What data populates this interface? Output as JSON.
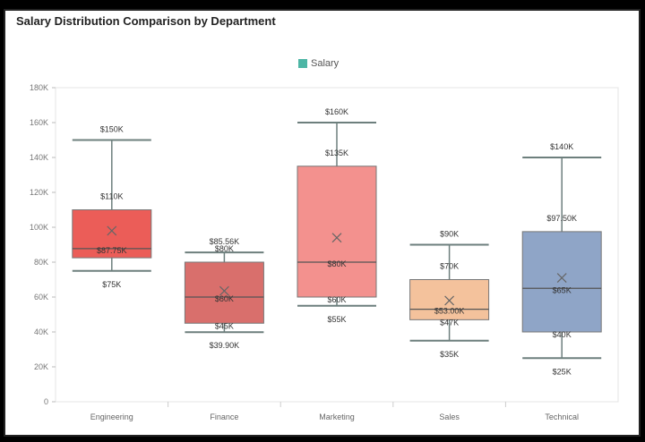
{
  "chart_data": {
    "type": "boxplot",
    "title": "Salary Distribution Comparison by Department",
    "legend": {
      "label": "Salary",
      "color": "#4db6a5",
      "placement": "top-center"
    },
    "xlabel": "",
    "ylabel": "",
    "ylim": [
      0,
      180000
    ],
    "y_ticks": [
      {
        "value": 0,
        "label": "0"
      },
      {
        "value": 20000,
        "label": "20K"
      },
      {
        "value": 40000,
        "label": "40K"
      },
      {
        "value": 60000,
        "label": "60K"
      },
      {
        "value": 80000,
        "label": "80K"
      },
      {
        "value": 100000,
        "label": "100K"
      },
      {
        "value": 120000,
        "label": "120K"
      },
      {
        "value": 140000,
        "label": "140K"
      },
      {
        "value": 160000,
        "label": "160K"
      },
      {
        "value": 180000,
        "label": "180K"
      }
    ],
    "categories": [
      "Engineering",
      "Finance",
      "Marketing",
      "Sales",
      "Technical"
    ],
    "series": [
      {
        "category": "Engineering",
        "min": 75000,
        "q1": 82500,
        "median": 87750,
        "q3": 110000,
        "max": 150000,
        "mean": 98000,
        "color": "#eb5d58",
        "labels": {
          "max": "$150K",
          "q3": "$110K",
          "median": "$87.75K",
          "min": "$75K"
        }
      },
      {
        "category": "Finance",
        "min": 39900,
        "q1": 45000,
        "median": 60000,
        "q3": 80000,
        "max": 85560,
        "mean": 63500,
        "color": "#d96f6c",
        "labels": {
          "max": "$85.56K",
          "q3": "$80K",
          "median": "$60K",
          "q1": "$45K",
          "min": "$39.90K"
        }
      },
      {
        "category": "Marketing",
        "min": 55000,
        "q1": 60000,
        "median": 80000,
        "q3": 135000,
        "max": 160000,
        "mean": 94000,
        "color": "#f3918e",
        "labels": {
          "max": "$160K",
          "q3": "$135K",
          "median": "$80K",
          "q1": "$60K",
          "min": "$55K"
        }
      },
      {
        "category": "Sales",
        "min": 35000,
        "q1": 47000,
        "median": 53000,
        "q3": 70000,
        "max": 90000,
        "mean": 58000,
        "color": "#f4c29c",
        "labels": {
          "max": "$90K",
          "q3": "$70K",
          "median": "$53.00K",
          "q1": "$47K",
          "min": "$35K"
        }
      },
      {
        "category": "Technical",
        "min": 25000,
        "q1": 40000,
        "median": 65000,
        "q3": 97500,
        "max": 140000,
        "mean": 71000,
        "color": "#8fa5c7",
        "labels": {
          "max": "$140K",
          "q3": "$97.50K",
          "median": "$65K",
          "q1": "$40K",
          "min": "$25K"
        }
      }
    ]
  }
}
